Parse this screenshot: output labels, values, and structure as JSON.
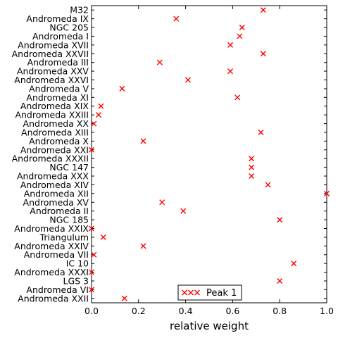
{
  "chart_data": {
    "type": "scatter",
    "xlabel": "relative weight",
    "xlim": [
      0.0,
      1.0
    ],
    "x_ticks": [
      "0.0",
      "0.2",
      "0.4",
      "0.6",
      "0.8",
      "1.0"
    ],
    "grid": false,
    "legend_position": "bottom-center",
    "series": [
      {
        "name": "Peak 1",
        "marker": "x",
        "color": "#ff0000",
        "points": [
          {
            "y": "M32",
            "x": 0.73
          },
          {
            "y": "Andromeda IX",
            "x": 0.36
          },
          {
            "y": "NGC 205",
            "x": 0.64
          },
          {
            "y": "Andromeda I",
            "x": 0.63
          },
          {
            "y": "Andromeda XVII",
            "x": 0.59
          },
          {
            "y": "Andromeda XXVII",
            "x": 0.73
          },
          {
            "y": "Andromeda III",
            "x": 0.29
          },
          {
            "y": "Andromeda XXV",
            "x": 0.59
          },
          {
            "y": "Andromeda XXVI",
            "x": 0.41
          },
          {
            "y": "Andromeda V",
            "x": 0.13
          },
          {
            "y": "Andromeda XI",
            "x": 0.62
          },
          {
            "y": "Andromeda XIX",
            "x": 0.04
          },
          {
            "y": "Andromeda XXIII",
            "x": 0.03
          },
          {
            "y": "Andromeda XX",
            "x": 0.01
          },
          {
            "y": "Andromeda XIII",
            "x": 0.72
          },
          {
            "y": "Andromeda X",
            "x": 0.22
          },
          {
            "y": "Andromeda XXI",
            "x": 0.0
          },
          {
            "y": "Andromeda XXXII",
            "x": 0.68
          },
          {
            "y": "NGC 147",
            "x": 0.68
          },
          {
            "y": "Andromeda XXX",
            "x": 0.68
          },
          {
            "y": "Andromeda XIV",
            "x": 0.75
          },
          {
            "y": "Andromeda XII",
            "x": 1.0
          },
          {
            "y": "Andromeda XV",
            "x": 0.3
          },
          {
            "y": "Andromeda II",
            "x": 0.39
          },
          {
            "y": "NGC 185",
            "x": 0.8
          },
          {
            "y": "Andromeda XXIX",
            "x": 0.0
          },
          {
            "y": "Triangulum",
            "x": 0.05
          },
          {
            "y": "Andromeda XXIV",
            "x": 0.22
          },
          {
            "y": "Andromeda VII",
            "x": 0.01
          },
          {
            "y": "IC 10",
            "x": 0.86
          },
          {
            "y": "Andromeda XXXI",
            "x": 0.0
          },
          {
            "y": "LGS 3",
            "x": 0.8
          },
          {
            "y": "Andromeda VI",
            "x": 0.0
          },
          {
            "y": "Andromeda XXII",
            "x": 0.14
          }
        ]
      }
    ]
  }
}
